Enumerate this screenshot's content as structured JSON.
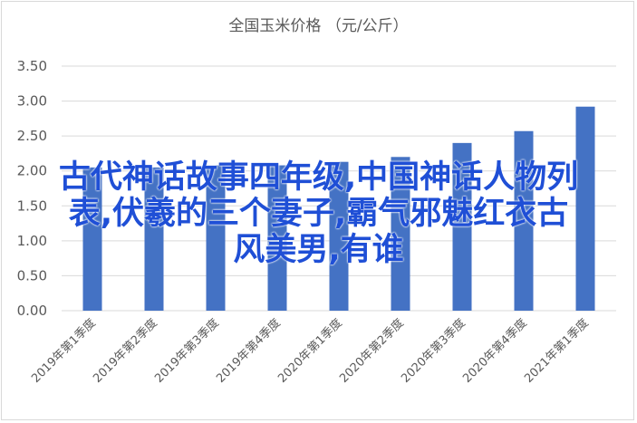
{
  "chart_data": {
    "type": "bar",
    "title": "全国玉米价格 （元/公斤）",
    "categories": [
      "2019年第1季度",
      "2019年第2季度",
      "2019年第3季度",
      "2019年第4季度",
      "2020年第1季度",
      "2020年第2季度",
      "2020年第3季度",
      "2020年第4季度",
      "2021年第1季度"
    ],
    "values": [
      2.05,
      2.05,
      2.08,
      2.08,
      2.13,
      2.2,
      2.4,
      2.57,
      2.92
    ],
    "y_ticks": [
      "0.00",
      "0.50",
      "1.00",
      "1.50",
      "2.00",
      "2.50",
      "3.00",
      "3.50"
    ],
    "ylim": [
      0,
      3.5
    ],
    "xlabel": "",
    "ylabel": "",
    "grid": true,
    "legend": "none",
    "bar_color": "#4472c4",
    "grid_color": "#d9d9d9",
    "overlay_color": "#1f4fd6"
  },
  "overlay": {
    "line1": "古代神话故事四年级,中国神话人物列",
    "line2": "表,伏羲的三个妻子,霸气邪魅红衣古",
    "line3": "风美男,有谁"
  }
}
